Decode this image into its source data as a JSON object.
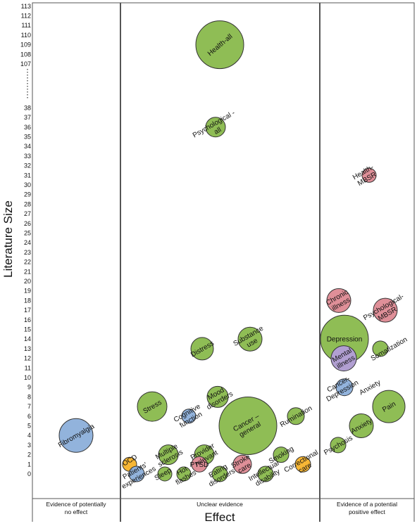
{
  "chart_data": {
    "type": "scatter",
    "subtype": "bubble",
    "title": "",
    "xlabel": "Effect",
    "ylabel": "Literature Size",
    "y_ticks": [
      "0",
      "1",
      "2",
      "3",
      "4",
      "5",
      "6",
      "7",
      "8",
      "9",
      "10",
      "11",
      "12",
      "13",
      "14",
      "15",
      "16",
      "17",
      "18",
      "19",
      "20",
      "21",
      "22",
      "23",
      "24",
      "25",
      "26",
      "27",
      "28",
      "29",
      "30",
      "31",
      "32",
      "33",
      "34",
      "35",
      "36",
      "37",
      "38",
      "107",
      "108",
      "109",
      "110",
      "111",
      "112",
      "113"
    ],
    "y_axis_break": "between 38 and 107",
    "categories": [
      "Evidence of potentially no effect",
      "Unclear evidence",
      "Evidence of a potential positive effect"
    ],
    "category_display": [
      [
        "Evidence of potentially",
        "no effect"
      ],
      [
        "Unclear evidence"
      ],
      [
        "Evidence of a potential",
        "positive effect"
      ]
    ],
    "colors": {
      "green": "#8fbd55",
      "blue": "#92b3dc",
      "pink": "#df8f98",
      "orange": "#f7b735",
      "purple": "#b19fd2",
      "outline": "#333333",
      "frame": "#555555"
    },
    "points": [
      {
        "label": [
          "Health-all"
        ],
        "category": "Unclear evidence",
        "y": 109,
        "size": 109,
        "color": "green"
      },
      {
        "label": [
          "Psychological -",
          "all"
        ],
        "category": "Unclear evidence",
        "y": 36,
        "size": 36,
        "color": "green"
      },
      {
        "label": [
          "Health-",
          "MBSR"
        ],
        "category": "Evidence of a potential positive effect",
        "y": 31,
        "size": 8,
        "color": "pink"
      },
      {
        "label": [
          "Chronic",
          "illness"
        ],
        "category": "Evidence of a potential positive effect",
        "y": 18,
        "size": 18,
        "color": "pink"
      },
      {
        "label": [
          "Psychological-",
          "MBSR"
        ],
        "category": "Evidence of a potential positive effect",
        "y": 17,
        "size": 17,
        "color": "pink"
      },
      {
        "label": [
          "Depression"
        ],
        "category": "Evidence of a potential positive effect",
        "y": 14,
        "size": 60,
        "color": "green"
      },
      {
        "label": [
          "Somatization"
        ],
        "category": "Evidence of a potential positive effect",
        "y": 13,
        "size": 8,
        "color": "green"
      },
      {
        "label": [
          "Mental",
          "illness"
        ],
        "category": "Evidence of a potential positive effect",
        "y": 12,
        "size": 12,
        "color": "purple"
      },
      {
        "label": [
          "Cancer-",
          "Depression"
        ],
        "category": "Evidence of a potential positive effect",
        "y": 9,
        "size": 8,
        "color": "blue"
      },
      {
        "label": [
          "Anxiety"
        ],
        "category": "Evidence of a potential positive effect",
        "y": 9,
        "size": 0,
        "color": "green"
      },
      {
        "label": [
          "Pain"
        ],
        "category": "Evidence of a potential positive effect",
        "y": 7,
        "size": 30,
        "color": "green"
      },
      {
        "label": [
          "Anxiety"
        ],
        "category": "Evidence of a potential positive effect",
        "y": 5,
        "size": 14,
        "color": "green"
      },
      {
        "label": [
          "Psychosis"
        ],
        "category": "Evidence of a potential positive effect",
        "y": 3,
        "size": 6,
        "color": "green"
      },
      {
        "label": [
          "Distress"
        ],
        "category": "Unclear evidence",
        "y": 13,
        "size": 13,
        "color": "green"
      },
      {
        "label": [
          "Substance",
          "use"
        ],
        "category": "Unclear evidence",
        "y": 14,
        "size": 14,
        "color": "green"
      },
      {
        "label": [
          "Stress"
        ],
        "category": "Unclear evidence",
        "y": 7,
        "size": 20,
        "color": "green"
      },
      {
        "label": [
          "Mood",
          "disorders"
        ],
        "category": "Unclear evidence",
        "y": 8,
        "size": 10,
        "color": "green"
      },
      {
        "label": [
          "Cognitive",
          "function"
        ],
        "category": "Unclear evidence",
        "y": 6,
        "size": 6,
        "color": "blue"
      },
      {
        "label": [
          "Cancer –",
          "general"
        ],
        "category": "Unclear evidence",
        "y": 5,
        "size": 90,
        "color": "green"
      },
      {
        "label": [
          "Rumination"
        ],
        "category": "Unclear evidence",
        "y": 6,
        "size": 6,
        "color": "green"
      },
      {
        "label": [
          "Multiple",
          "sclerosis"
        ],
        "category": "Unclear evidence",
        "y": 2,
        "size": 8,
        "color": "green"
      },
      {
        "label": [
          "Provider",
          "relevant"
        ],
        "category": "Unclear evidence",
        "y": 2,
        "size": 8,
        "color": "green"
      },
      {
        "label": [
          "Smoking"
        ],
        "category": "Unclear evidence",
        "y": 2,
        "size": 6,
        "color": "green"
      },
      {
        "label": [
          "OCD"
        ],
        "category": "Unclear evidence",
        "y": 1,
        "size": 5,
        "color": "orange"
      },
      {
        "label": [
          "Patients'",
          "experiences"
        ],
        "category": "Unclear evidence",
        "y": 0,
        "size": 6,
        "color": "blue"
      },
      {
        "label": [
          "Sleep"
        ],
        "category": "Unclear evidence",
        "y": 0,
        "size": 5,
        "color": "green"
      },
      {
        "label": [
          "Hot",
          "flashes"
        ],
        "category": "Unclear evidence",
        "y": 0,
        "size": 5,
        "color": "green"
      },
      {
        "label": [
          "PTSD"
        ],
        "category": "Unclear evidence",
        "y": 1,
        "size": 5,
        "color": "pink"
      },
      {
        "label": [
          "Eating",
          "disorders"
        ],
        "category": "Unclear evidence",
        "y": 0,
        "size": 5,
        "color": "green"
      },
      {
        "label": [
          "Stroke",
          "care"
        ],
        "category": "Unclear evidence",
        "y": 1,
        "size": 6,
        "color": "pink"
      },
      {
        "label": [
          "Intellectual",
          "disability"
        ],
        "category": "Unclear evidence",
        "y": 0,
        "size": 5,
        "color": "green"
      },
      {
        "label": [
          "Correctional",
          "care"
        ],
        "category": "Unclear evidence",
        "y": 1,
        "size": 5,
        "color": "orange"
      },
      {
        "label": [
          "Fibromyalgia"
        ],
        "category": "Evidence of potentially no effect",
        "y": 4,
        "size": 12,
        "color": "blue"
      }
    ]
  }
}
